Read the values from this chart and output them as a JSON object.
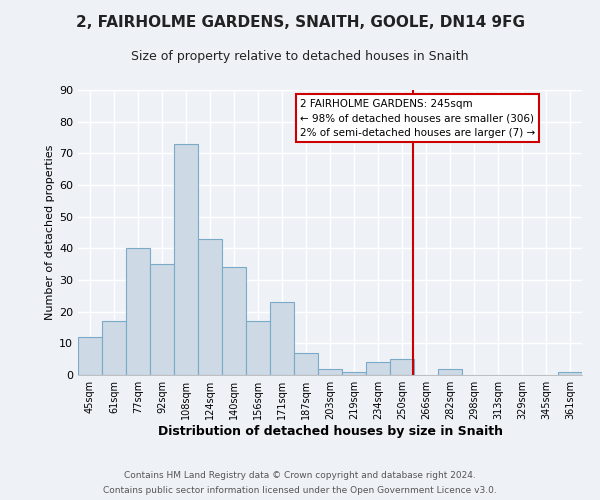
{
  "title": "2, FAIRHOLME GARDENS, SNAITH, GOOLE, DN14 9FG",
  "subtitle": "Size of property relative to detached houses in Snaith",
  "xlabel": "Distribution of detached houses by size in Snaith",
  "ylabel": "Number of detached properties",
  "bar_labels": [
    "45sqm",
    "61sqm",
    "77sqm",
    "92sqm",
    "108sqm",
    "124sqm",
    "140sqm",
    "156sqm",
    "171sqm",
    "187sqm",
    "203sqm",
    "219sqm",
    "234sqm",
    "250sqm",
    "266sqm",
    "282sqm",
    "298sqm",
    "313sqm",
    "329sqm",
    "345sqm",
    "361sqm"
  ],
  "bar_values": [
    12,
    17,
    40,
    35,
    73,
    43,
    34,
    17,
    23,
    7,
    2,
    1,
    4,
    5,
    0,
    2,
    0,
    0,
    0,
    0,
    1
  ],
  "bar_color": "#cdd9e5",
  "bar_edge_color": "#7aaac8",
  "ylim": [
    0,
    90
  ],
  "yticks": [
    0,
    10,
    20,
    30,
    40,
    50,
    60,
    70,
    80,
    90
  ],
  "vline_x": 13.5,
  "vline_color": "#cc0000",
  "annotation_box_title": "2 FAIRHOLME GARDENS: 245sqm",
  "annotation_line1": "← 98% of detached houses are smaller (306)",
  "annotation_line2": "2% of semi-detached houses are larger (7) →",
  "footer_line1": "Contains HM Land Registry data © Crown copyright and database right 2024.",
  "footer_line2": "Contains public sector information licensed under the Open Government Licence v3.0.",
  "bg_color": "#eef2f7",
  "grid_color": "#ffffff",
  "title_fontsize": 11,
  "subtitle_fontsize": 9,
  "xlabel_fontsize": 9,
  "ylabel_fontsize": 8,
  "tick_fontsize": 7,
  "footer_fontsize": 6.5
}
